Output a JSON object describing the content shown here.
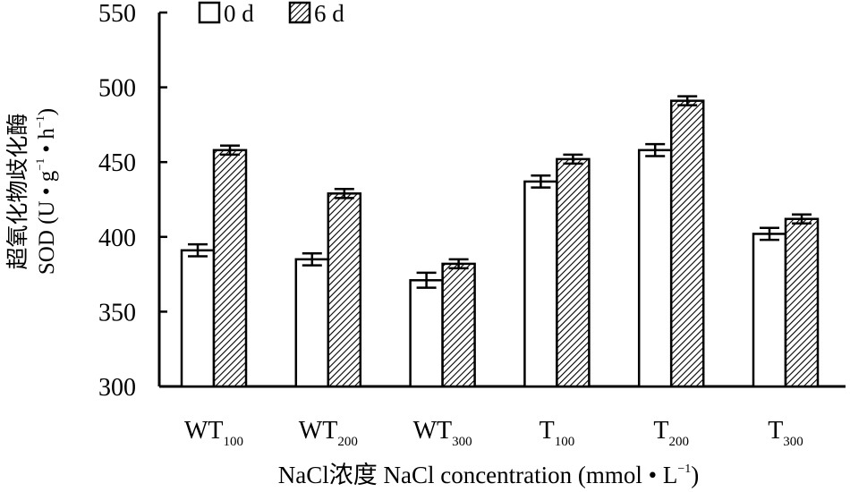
{
  "chart_data": {
    "type": "bar",
    "categories": [
      {
        "base": "WT",
        "sub": "100"
      },
      {
        "base": "WT",
        "sub": "200"
      },
      {
        "base": "WT",
        "sub": "300"
      },
      {
        "base": "T",
        "sub": "100"
      },
      {
        "base": "T",
        "sub": "200"
      },
      {
        "base": "T",
        "sub": "300"
      }
    ],
    "series": [
      {
        "name": "0 d",
        "pattern": "solid-white",
        "values": [
          391,
          385,
          371,
          437,
          458,
          402
        ],
        "errors": [
          4,
          4,
          5,
          4,
          4,
          4
        ]
      },
      {
        "name": "6 d",
        "pattern": "diagonal-hatch",
        "values": [
          458,
          429,
          382,
          452,
          491,
          412
        ],
        "errors": [
          3,
          3,
          3,
          3,
          3,
          3
        ]
      }
    ],
    "ylim": [
      300,
      550
    ],
    "yticks": [
      "300",
      "350",
      "400",
      "450",
      "500",
      "550"
    ],
    "ylabel_cn": "超氧化物歧化酶",
    "ylabel_en": {
      "prefix": "SOD (U • g",
      "exp1": "−1",
      "mid": " • h",
      "exp2": "−1",
      "suffix": ")"
    },
    "xlabel": {
      "text": "NaCl浓度 NaCl concentration (mmol • L",
      "exp": "−1",
      "suffix": ")"
    },
    "legend_position": "top-left",
    "colors": {
      "axis": "#000000",
      "bar_fill_0d": "#ffffff",
      "hatch": "#000000"
    }
  }
}
